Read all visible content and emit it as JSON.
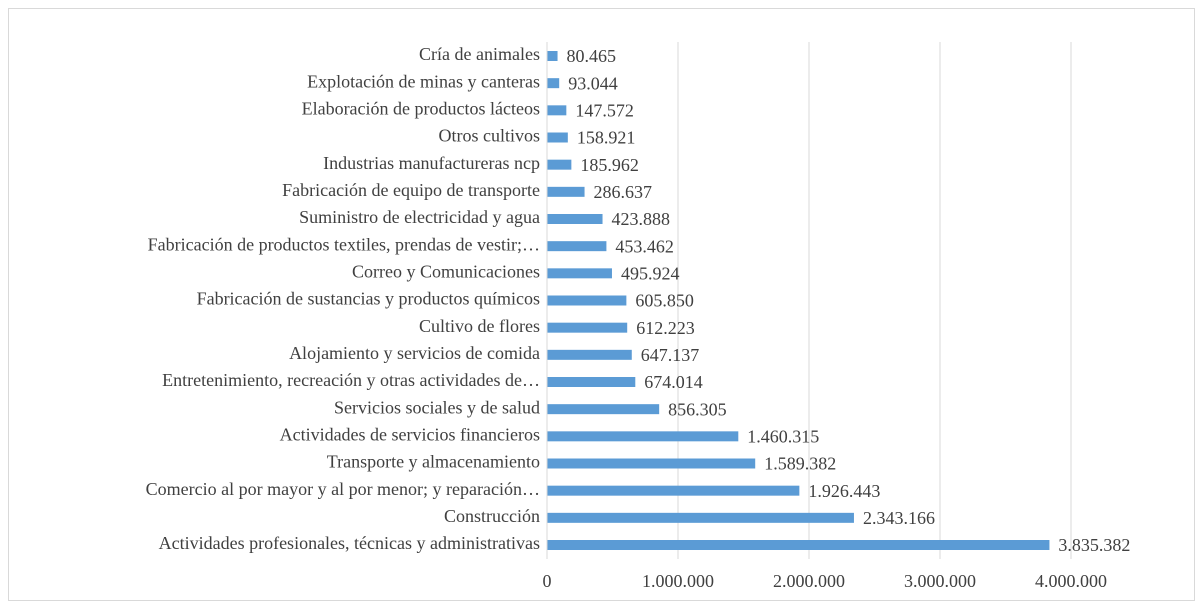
{
  "chart_data": {
    "type": "bar",
    "orientation": "horizontal",
    "color": "#5b9bd5",
    "grid": true,
    "categories": [
      "Cría de animales",
      "Explotación de minas y canteras",
      "Elaboración de productos lácteos",
      "Otros cultivos",
      "Industrias manufactureras ncp",
      "Fabricación de equipo de transporte",
      "Suministro de electricidad y agua",
      "Fabricación de productos textiles, prendas de vestir;…",
      "Correo y Comunicaciones",
      "Fabricación de sustancias y productos químicos",
      "Cultivo de flores",
      "Alojamiento y servicios de comida",
      "Entretenimiento, recreación y otras actividades de…",
      "Servicios sociales y de salud",
      "Actividades de servicios financieros",
      "Transporte y almacenamiento",
      "Comercio al por mayor y al por menor; y reparación…",
      "Construcción",
      "Actividades profesionales, técnicas y administrativas"
    ],
    "values": [
      80465,
      93044,
      147572,
      158921,
      185962,
      286637,
      423888,
      453462,
      495924,
      605850,
      612223,
      647137,
      674014,
      856305,
      1460315,
      1589382,
      1926443,
      2343166,
      3835382
    ],
    "value_labels": [
      "80.465",
      "93.044",
      "147.572",
      "158.921",
      "185.962",
      "286.637",
      "423.888",
      "453.462",
      "495.924",
      "605.850",
      "612.223",
      "647.137",
      "674.014",
      "856.305",
      "1.460.315",
      "1.589.382",
      "1.926.443",
      "2.343.166",
      "3.835.382"
    ],
    "xlim": [
      0,
      4000000
    ],
    "xticks": [
      0,
      {
        "value": 1000000,
        "label": "1.000.000"
      },
      {
        "value": 2000000,
        "label": "2.000.000"
      },
      {
        "value": 3000000,
        "label": "3.000.000"
      },
      {
        "value": 4000000,
        "label": "4.000.000"
      }
    ]
  }
}
